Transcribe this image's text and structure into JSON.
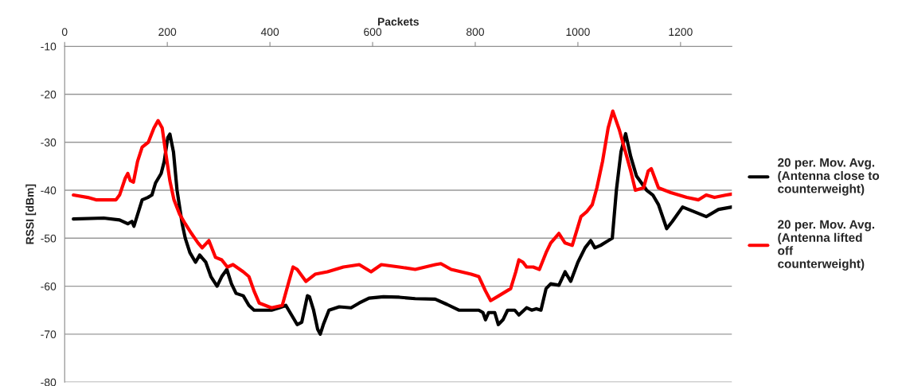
{
  "chart_data": {
    "type": "line",
    "xlabel": "Packets",
    "ylabel": "RSSI [dBm]",
    "xlim": [
      0,
      1300
    ],
    "xticks": [
      0,
      200,
      400,
      600,
      800,
      1000,
      1200
    ],
    "ylim": [
      -80,
      -10
    ],
    "yticks": [
      -80,
      -70,
      -60,
      -50,
      -40,
      -30,
      -20,
      -10
    ],
    "grid": "y",
    "legend": "right",
    "marker": "none",
    "line_style": "solid",
    "series": [
      {
        "name": "20 per. Mov. Avg.\n(Antenna close to\ncounterweight)",
        "color": "#000000",
        "x": [
          17,
          76,
          107,
          123,
          131,
          135,
          151,
          162,
          170,
          177,
          188,
          194,
          201,
          205,
          212,
          219,
          229,
          235,
          244,
          255,
          263,
          275,
          285,
          297,
          306,
          316,
          325,
          334,
          348,
          359,
          369,
          387,
          403,
          418,
          431,
          442,
          453,
          462,
          473,
          477,
          485,
          493,
          498,
          504,
          515,
          535,
          558,
          574,
          593,
          621,
          652,
          683,
          722,
          745,
          768,
          807,
          815,
          820,
          826,
          838,
          845,
          854,
          863,
          877,
          885,
          900,
          910,
          919,
          928,
          938,
          947,
          963,
          975,
          986,
          1000,
          1014,
          1025,
          1033,
          1044,
          1067,
          1075,
          1084,
          1093,
          1103,
          1114,
          1134,
          1146,
          1157,
          1173,
          1184,
          1204,
          1227,
          1250,
          1274,
          1300
        ],
        "values": [
          -46,
          -45.8,
          -46.2,
          -47,
          -46.5,
          -47.5,
          -42,
          -41.5,
          -41,
          -38.5,
          -36.5,
          -34,
          -29,
          -28.3,
          -32,
          -40,
          -47,
          -50,
          -53,
          -55,
          -53.5,
          -55,
          -58,
          -60,
          -58,
          -56.5,
          -59.5,
          -61.5,
          -62,
          -64,
          -65,
          -65,
          -65,
          -64.5,
          -64,
          -66,
          -68,
          -67.5,
          -62,
          -62.2,
          -65,
          -69,
          -70,
          -68,
          -65,
          -64.3,
          -64.5,
          -63.5,
          -62.5,
          -62.2,
          -62.3,
          -62.6,
          -62.7,
          -63.8,
          -65,
          -65,
          -65.5,
          -67,
          -65.5,
          -65.5,
          -68,
          -67,
          -65,
          -65,
          -66,
          -64.5,
          -65,
          -64.7,
          -65,
          -60.5,
          -59.5,
          -59.8,
          -57,
          -59,
          -55,
          -52,
          -50.5,
          -52,
          -51.5,
          -50,
          -40,
          -32,
          -28.2,
          -33,
          -37,
          -40,
          -41,
          -43,
          -48,
          -46.5,
          -43.5,
          -44.5,
          -45.5,
          -44,
          -43.5
        ]
      },
      {
        "name": "20 per. Mov. Avg.\n(Antenna lifted\noff\ncounterweight)",
        "color": "#ff0000",
        "x": [
          17,
          45,
          61,
          100,
          107,
          118,
          123,
          128,
          134,
          142,
          151,
          163,
          174,
          182,
          190,
          198,
          205,
          213,
          224,
          235,
          247,
          260,
          268,
          281,
          294,
          306,
          317,
          328,
          348,
          359,
          369,
          379,
          403,
          424,
          437,
          445,
          453,
          470,
          488,
          512,
          543,
          574,
          597,
          617,
          652,
          683,
          722,
          733,
          753,
          792,
          807,
          820,
          830,
          846,
          869,
          879,
          885,
          893,
          900,
          913,
          925,
          938,
          947,
          963,
          975,
          989,
          1006,
          1017,
          1028,
          1037,
          1048,
          1059,
          1068,
          1081,
          1090,
          1103,
          1112,
          1128,
          1137,
          1143,
          1157,
          1181,
          1212,
          1235,
          1250,
          1266,
          1289,
          1300
        ],
        "values": [
          -41,
          -41.5,
          -42,
          -42,
          -41,
          -37.5,
          -36.5,
          -38,
          -38.3,
          -34,
          -31,
          -30,
          -27,
          -25.5,
          -27,
          -33,
          -38,
          -42,
          -45,
          -47,
          -49,
          -51,
          -52,
          -50.5,
          -54,
          -54.5,
          -56,
          -55.5,
          -57,
          -58,
          -61,
          -63.5,
          -64.5,
          -64,
          -59,
          -56,
          -56.5,
          -59,
          -57.5,
          -57,
          -56,
          -55.5,
          -57,
          -55.5,
          -56,
          -56.5,
          -55.5,
          -55.3,
          -56.5,
          -57.5,
          -58,
          -61,
          -63,
          -62,
          -60.5,
          -57,
          -54.5,
          -55,
          -56,
          -56,
          -56.5,
          -53,
          -51,
          -49,
          -51,
          -51.5,
          -45.5,
          -44.5,
          -43,
          -39.5,
          -34,
          -27,
          -23.5,
          -27.5,
          -31,
          -36,
          -40,
          -39.5,
          -36,
          -35.5,
          -39.5,
          -40.5,
          -41.5,
          -42,
          -41,
          -41.5,
          -41,
          -40.8
        ]
      }
    ]
  }
}
